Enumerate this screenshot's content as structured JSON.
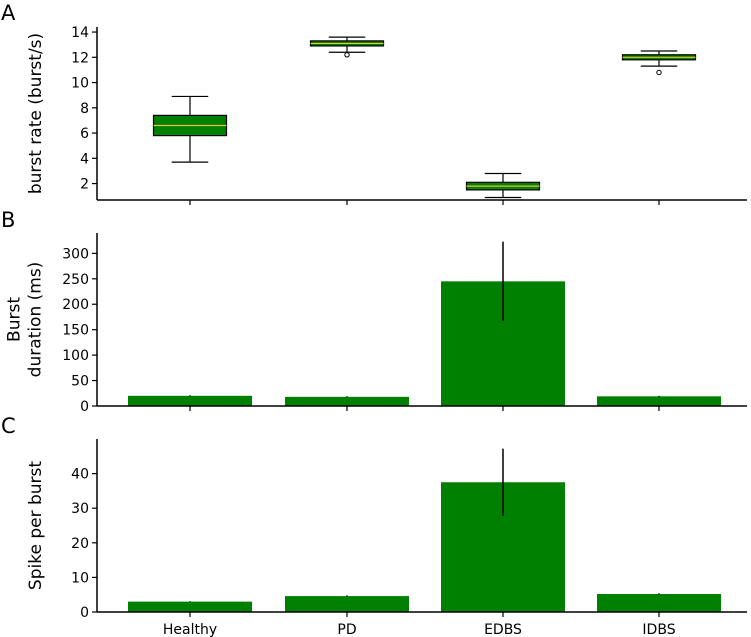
{
  "colors": {
    "bar": "#008000",
    "median": "#e8c040",
    "axis": "#000000",
    "background": "#ffffff"
  },
  "categories": [
    "Healthy",
    "PD",
    "EDBS",
    "IDBS"
  ],
  "chart_data": [
    {
      "panel": "A",
      "type": "box",
      "ylabel": "burst rate (burst/s)",
      "ylim": [
        0.7,
        14.4
      ],
      "yticks": [
        2,
        4,
        6,
        8,
        10,
        12,
        14
      ],
      "categories": [
        "Healthy",
        "PD",
        "EDBS",
        "IDBS"
      ],
      "boxes": [
        {
          "whisker_low": 3.7,
          "q1": 5.8,
          "median": 6.6,
          "q3": 7.4,
          "whisker_high": 8.9,
          "outliers": []
        },
        {
          "whisker_low": 12.4,
          "q1": 12.9,
          "median": 13.1,
          "q3": 13.3,
          "whisker_high": 13.6,
          "outliers": [
            12.2
          ]
        },
        {
          "whisker_low": 0.9,
          "q1": 1.5,
          "median": 1.8,
          "q3": 2.1,
          "whisker_high": 2.8,
          "outliers": []
        },
        {
          "whisker_low": 11.3,
          "q1": 11.8,
          "median": 12.0,
          "q3": 12.2,
          "whisker_high": 12.5,
          "outliers": [
            10.8
          ]
        }
      ]
    },
    {
      "panel": "B",
      "type": "bar",
      "ylabel_lines": [
        "Burst",
        "duration (ms)"
      ],
      "ylim": [
        0,
        340
      ],
      "yticks": [
        0,
        50,
        100,
        150,
        200,
        250,
        300
      ],
      "categories": [
        "Healthy",
        "PD",
        "EDBS",
        "IDBS"
      ],
      "values": [
        20,
        18,
        245,
        19
      ],
      "errors": [
        1,
        1,
        78,
        1
      ]
    },
    {
      "panel": "C",
      "type": "bar",
      "ylabel": "Spike per burst",
      "ylim": [
        0,
        50
      ],
      "yticks": [
        0,
        10,
        20,
        30,
        40
      ],
      "xticklabels": [
        "Healthy",
        "PD",
        "EDBS",
        "IDBS"
      ],
      "categories": [
        "Healthy",
        "PD",
        "EDBS",
        "IDBS"
      ],
      "values": [
        3.0,
        4.6,
        37.5,
        5.2
      ],
      "errors": [
        0.1,
        0.2,
        9.7,
        0.2
      ]
    }
  ]
}
